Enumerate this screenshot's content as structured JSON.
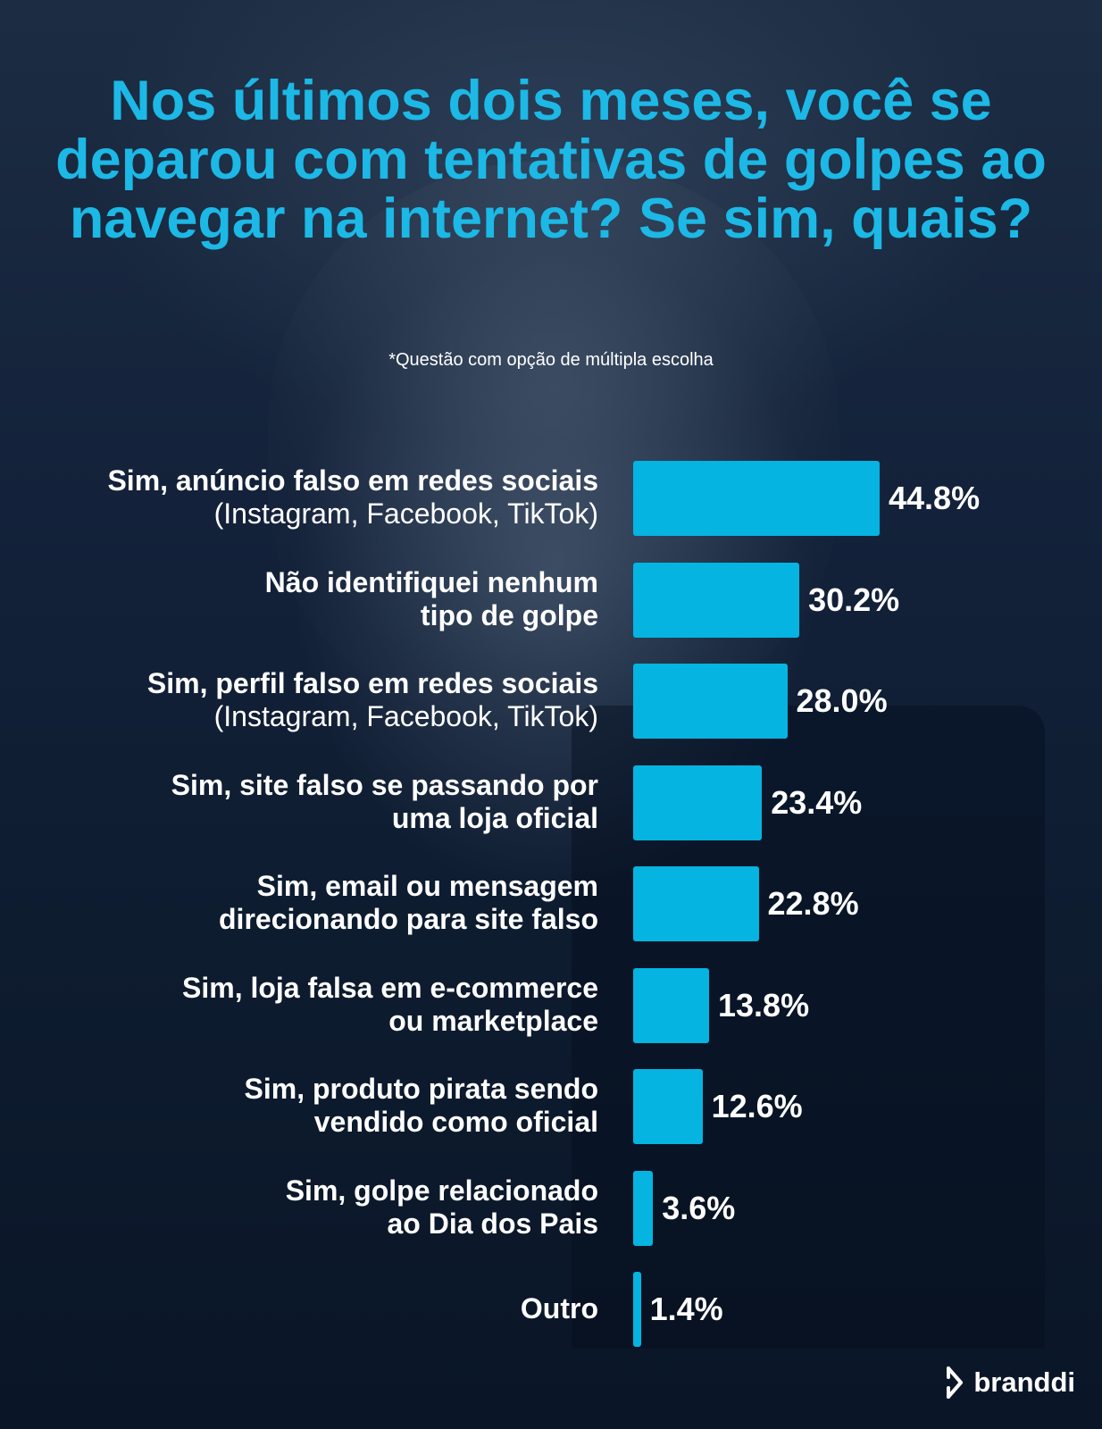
{
  "title": "Nos últimos dois meses, você se deparou com tentativas de golpes ao navegar na internet? Se sim, quais?",
  "subtitle": "*Questão com opção de múltipla escolha",
  "brand": {
    "name": "branddi"
  },
  "colors": {
    "accent": "#1cb8e6",
    "bar": "#05b4e1",
    "text": "#ffffff",
    "background": "#0d1b2e"
  },
  "chart_data": {
    "type": "bar",
    "orientation": "horizontal",
    "title": "Nos últimos dois meses, você se deparou com tentativas de golpes ao navegar na internet? Se sim, quais?",
    "xlabel": "",
    "ylabel": "",
    "xlim": [
      0,
      50
    ],
    "unit": "%",
    "categories": [
      {
        "line1": "Sim, anúncio falso em redes sociais",
        "line2": "(Instagram, Facebook, TikTok)",
        "line2_bold": false
      },
      {
        "line1": "Não identifiquei nenhum",
        "line2": "tipo de golpe",
        "line2_bold": true
      },
      {
        "line1": "Sim, perfil falso em redes sociais",
        "line2": "(Instagram, Facebook, TikTok)",
        "line2_bold": false
      },
      {
        "line1": "Sim, site falso se passando por",
        "line2": "uma loja oficial",
        "line2_bold": true
      },
      {
        "line1": "Sim, email ou mensagem",
        "line2": "direcionando para site falso",
        "line2_bold": true
      },
      {
        "line1": "Sim, loja falsa em e-commerce",
        "line2": "ou marketplace",
        "line2_bold": true
      },
      {
        "line1": "Sim, produto pirata sendo",
        "line2": "vendido como oficial",
        "line2_bold": true
      },
      {
        "line1": "Sim, golpe relacionado",
        "line2": "ao Dia dos Pais",
        "line2_bold": true
      },
      {
        "line1": "Outro",
        "line2": "",
        "line2_bold": true
      }
    ],
    "values": [
      44.8,
      30.2,
      28.0,
      23.4,
      22.8,
      13.8,
      12.6,
      3.6,
      1.4
    ],
    "value_labels": [
      "44.8%",
      "30.2%",
      "28.0%",
      "23.4%",
      "22.8%",
      "13.8%",
      "12.6%",
      "3.6%",
      "1.4%"
    ]
  }
}
